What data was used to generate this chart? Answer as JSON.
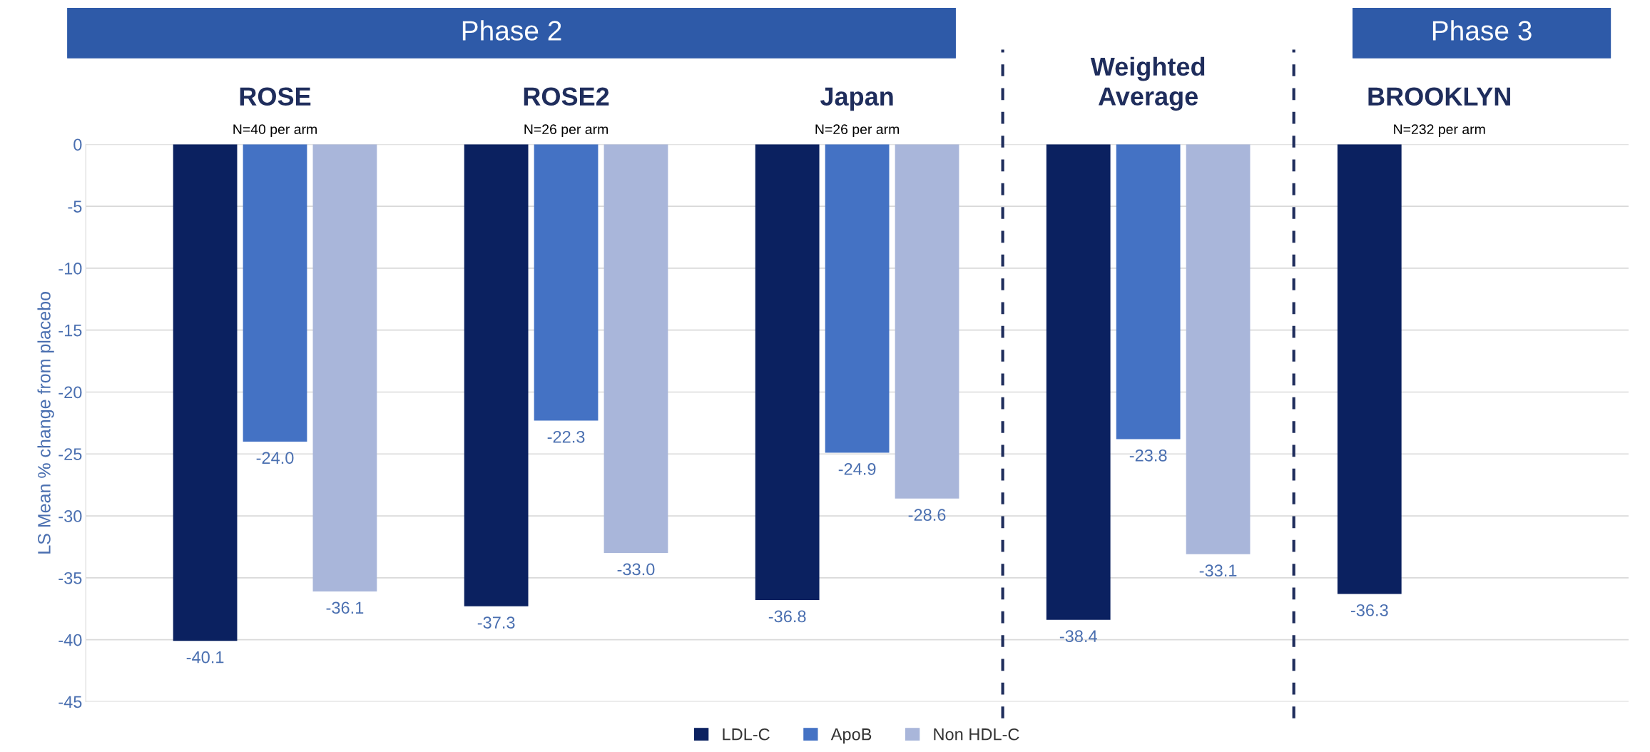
{
  "chart_data": {
    "type": "bar",
    "categories": [
      "ROSE",
      "ROSE2",
      "Japan",
      "Weighted\nAverage",
      "BROOKLYN"
    ],
    "ylabel": "LS Mean % change from placebo",
    "series": [
      {
        "name": "LDL-C",
        "color": "#0b2160",
        "values": [
          -40.1,
          -37.3,
          -36.8,
          -38.4,
          -36.3
        ],
        "value_labels": [
          "-40.1",
          "-37.3",
          "-36.8",
          "-38.4",
          "-36.3"
        ]
      },
      {
        "name": "ApoB",
        "color": "#4472c4",
        "values": [
          -24.0,
          -22.3,
          -24.9,
          -23.8,
          null
        ],
        "value_labels": [
          "-24.0",
          "-22.3",
          "-24.9",
          "-23.8",
          null
        ]
      },
      {
        "name": "Non HDL-C",
        "color": "#a9b6da",
        "values": [
          -36.1,
          -33.0,
          -28.6,
          -33.1,
          null
        ],
        "value_labels": [
          "-36.1",
          "-33.0",
          "-28.6",
          "-33.1",
          null
        ]
      }
    ],
    "ylim": [
      -45,
      0
    ],
    "yticks": [
      0,
      -5,
      -10,
      -15,
      -20,
      -25,
      -30,
      -35,
      -40,
      -45
    ],
    "grid": "y",
    "legend": "bottom",
    "annotations": [
      "Phase 2",
      "Phase 3",
      "N=40 per arm",
      "N=26 per arm",
      "N=26 per arm",
      "N=232 per arm"
    ]
  }
}
